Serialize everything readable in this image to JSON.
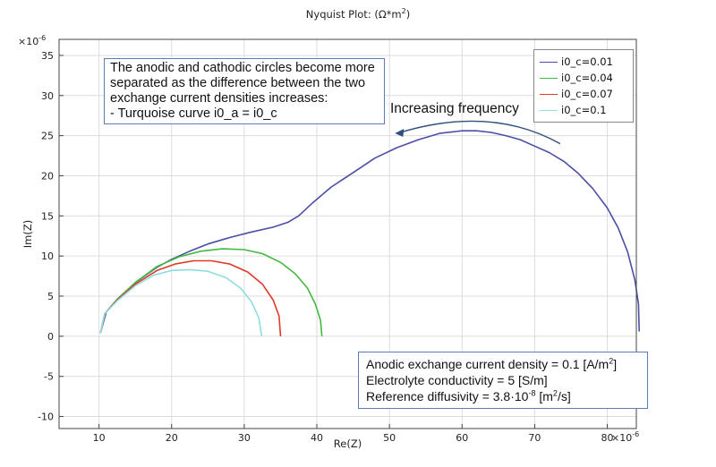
{
  "chart_data": {
    "type": "line",
    "title": "Nyquist Plot:",
    "title_unit": "(Ω*m",
    "title_unit_sup": "2",
    "title_unit_close": ")",
    "xlabel": "Re(Z)",
    "ylabel": "Im(Z)",
    "x_multiplier": "×10",
    "x_multiplier_exp": "-6",
    "y_multiplier": "×10",
    "y_multiplier_exp": "-6",
    "xlim": [
      4.5,
      84
    ],
    "ylim": [
      -11.5,
      37
    ],
    "xticks": [
      "10",
      "20",
      "30",
      "40",
      "50",
      "60",
      "70",
      "80"
    ],
    "yticks": [
      "-10",
      "-5",
      "0",
      "5",
      "10",
      "15",
      "20",
      "25",
      "30",
      "35"
    ],
    "grid": true,
    "legend_position": "top-right",
    "series": [
      {
        "name": "i0_c=0.01",
        "color": "#4b4fa3",
        "points": [
          [
            10.2,
            0.4
          ],
          [
            11.0,
            3.0
          ],
          [
            12.5,
            4.6
          ],
          [
            15.0,
            6.7
          ],
          [
            18.0,
            8.6
          ],
          [
            20.0,
            9.6
          ],
          [
            22.5,
            10.6
          ],
          [
            25.0,
            11.5
          ],
          [
            28.0,
            12.3
          ],
          [
            31.0,
            13.0
          ],
          [
            34.0,
            13.6
          ],
          [
            36.0,
            14.2
          ],
          [
            37.5,
            15.0
          ],
          [
            39.5,
            16.7
          ],
          [
            42.0,
            18.6
          ],
          [
            45.0,
            20.4
          ],
          [
            48.0,
            22.2
          ],
          [
            51.0,
            23.5
          ],
          [
            54.0,
            24.5
          ],
          [
            57.0,
            25.3
          ],
          [
            60.0,
            25.6
          ],
          [
            62.0,
            25.6
          ],
          [
            64.0,
            25.4
          ],
          [
            66.0,
            25.0
          ],
          [
            68.0,
            24.5
          ],
          [
            70.0,
            23.7
          ],
          [
            72.0,
            22.9
          ],
          [
            74.0,
            21.8
          ],
          [
            76.0,
            20.3
          ],
          [
            78.0,
            18.4
          ],
          [
            80.0,
            16.0
          ],
          [
            81.5,
            13.5
          ],
          [
            82.8,
            10.5
          ],
          [
            83.8,
            7.0
          ],
          [
            84.3,
            4.0
          ],
          [
            84.4,
            0.6
          ]
        ]
      },
      {
        "name": "i0_c=0.04",
        "color": "#42b942",
        "points": [
          [
            10.2,
            0.4
          ],
          [
            10.8,
            2.8
          ],
          [
            12.5,
            4.6
          ],
          [
            15.0,
            6.7
          ],
          [
            18.0,
            8.7
          ],
          [
            21.0,
            9.9
          ],
          [
            24.0,
            10.6
          ],
          [
            27.0,
            10.9
          ],
          [
            30.0,
            10.8
          ],
          [
            32.5,
            10.3
          ],
          [
            35.0,
            9.2
          ],
          [
            37.0,
            7.8
          ],
          [
            38.7,
            6.0
          ],
          [
            39.8,
            4.0
          ],
          [
            40.5,
            2.0
          ],
          [
            40.7,
            0.0
          ]
        ]
      },
      {
        "name": "i0_c=0.07",
        "color": "#e0382b",
        "points": [
          [
            10.2,
            0.4
          ],
          [
            10.8,
            2.8
          ],
          [
            12.5,
            4.5
          ],
          [
            15.0,
            6.5
          ],
          [
            18.0,
            8.2
          ],
          [
            20.5,
            9.0
          ],
          [
            23.0,
            9.4
          ],
          [
            25.5,
            9.4
          ],
          [
            28.0,
            9.0
          ],
          [
            30.5,
            8.0
          ],
          [
            32.5,
            6.5
          ],
          [
            34.0,
            4.5
          ],
          [
            34.8,
            2.5
          ],
          [
            35.0,
            0.0
          ]
        ]
      },
      {
        "name": "i0_c=0.1",
        "color": "#8fdde0",
        "points": [
          [
            10.2,
            0.4
          ],
          [
            10.8,
            2.8
          ],
          [
            12.5,
            4.4
          ],
          [
            15.0,
            6.3
          ],
          [
            17.5,
            7.6
          ],
          [
            20.0,
            8.2
          ],
          [
            22.5,
            8.3
          ],
          [
            25.0,
            8.1
          ],
          [
            27.5,
            7.3
          ],
          [
            29.5,
            6.0
          ],
          [
            31.0,
            4.3
          ],
          [
            32.0,
            2.3
          ],
          [
            32.4,
            0.0
          ]
        ]
      }
    ],
    "annotations": {
      "top_left_lines": [
        "The anodic and cathodic circles become more",
        "separated as the difference between the two",
        "exchange current densities increases:",
        "- Turquoise curve i0_a = i0_c"
      ],
      "arrow_label": "Increasing frequency",
      "bottom_right": {
        "line1_text": "Anodic exchange current density = 0.1 [A/m",
        "line1_sup": "2",
        "line1_end": "]",
        "line2_text": "Electrolyte conductivity = 5 [S/m]",
        "line3_text": "Reference diffusivity = 3.8·10",
        "line3_sup": "-8",
        "line3_mid": " [m",
        "line3_sup2": "2",
        "line3_end": "/s]"
      }
    }
  }
}
